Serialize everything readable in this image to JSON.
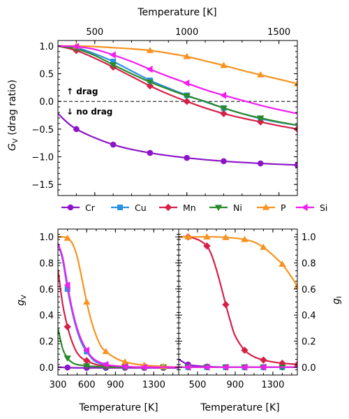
{
  "chart_data": [
    {
      "id": "top",
      "type": "line",
      "xlabel_top": "Temperature [K]",
      "ylabel": "G",
      "ylabel_sub": "V",
      "ylabel_rest": " (drag ratio)",
      "xlim": [
        300,
        1600
      ],
      "ylim": [
        -1.7,
        1.1
      ],
      "xticks": [
        500,
        1000,
        1500
      ],
      "yticks": [
        1.0,
        0.5,
        0.0,
        -0.5,
        -1.0,
        -1.5
      ],
      "ytick_labels": [
        "1.0",
        "0.5",
        "0.0",
        "−0.5",
        "−1.0",
        "−1.5"
      ],
      "zero_line": 0,
      "annotations": {
        "up": "↑ drag",
        "down": "↓ no drag"
      },
      "series": [
        {
          "name": "Cr",
          "color": "#8c14c8",
          "marker": "circle",
          "x": [
            300,
            400,
            600,
            800,
            1000,
            1200,
            1400,
            1600
          ],
          "y": [
            -0.22,
            -0.5,
            -0.78,
            -0.93,
            -1.02,
            -1.08,
            -1.12,
            -1.15
          ],
          "markers_x": [
            400,
            600,
            800,
            1000,
            1200,
            1400,
            1600
          ]
        },
        {
          "name": "Cu",
          "color": "#2b8fe3",
          "marker": "square",
          "x": [
            300,
            400,
            500,
            600,
            700,
            800,
            900,
            1000,
            1100,
            1200,
            1300,
            1400,
            1500,
            1600
          ],
          "y": [
            1.0,
            0.97,
            0.86,
            0.72,
            0.55,
            0.38,
            0.24,
            0.11,
            -0.01,
            -0.12,
            -0.22,
            -0.31,
            -0.38,
            -0.43
          ],
          "markers_x": [
            400,
            600,
            800,
            1000,
            1200,
            1400
          ]
        },
        {
          "name": "Mn",
          "color": "#d62048",
          "marker": "diamond",
          "x": [
            300,
            400,
            500,
            600,
            700,
            800,
            900,
            1000,
            1100,
            1200,
            1300,
            1400,
            1500,
            1600
          ],
          "y": [
            1.0,
            0.92,
            0.78,
            0.62,
            0.45,
            0.28,
            0.13,
            0.0,
            -0.12,
            -0.22,
            -0.3,
            -0.37,
            -0.44,
            -0.5
          ],
          "markers_x": [
            400,
            600,
            800,
            1000,
            1200,
            1400,
            1600
          ]
        },
        {
          "name": "Ni",
          "color": "#2a8a2a",
          "marker": "triangle-down",
          "x": [
            300,
            400,
            500,
            600,
            700,
            800,
            900,
            1000,
            1100,
            1200,
            1300,
            1400,
            1500,
            1600
          ],
          "y": [
            1.0,
            0.95,
            0.83,
            0.66,
            0.5,
            0.35,
            0.22,
            0.1,
            0.0,
            -0.12,
            -0.22,
            -0.3,
            -0.37,
            -0.43
          ],
          "markers_x": [
            400,
            600,
            800,
            1000,
            1200,
            1400
          ]
        },
        {
          "name": "P",
          "color": "#f7931e",
          "marker": "triangle-up",
          "x": [
            300,
            400,
            500,
            600,
            700,
            800,
            900,
            1000,
            1100,
            1200,
            1300,
            1400,
            1500,
            1600
          ],
          "y": [
            1.0,
            1.0,
            0.99,
            0.97,
            0.95,
            0.92,
            0.87,
            0.81,
            0.73,
            0.65,
            0.56,
            0.48,
            0.4,
            0.32
          ],
          "markers_x": [
            400,
            800,
            1000,
            1200,
            1400,
            1600
          ]
        },
        {
          "name": "Si",
          "color": "#f21cf0",
          "marker": "triangle-left",
          "x": [
            300,
            400,
            500,
            600,
            700,
            800,
            900,
            1000,
            1100,
            1200,
            1300,
            1400,
            1500,
            1600
          ],
          "y": [
            1.0,
            0.99,
            0.94,
            0.84,
            0.72,
            0.58,
            0.45,
            0.33,
            0.21,
            0.11,
            0.02,
            -0.07,
            -0.15,
            -0.22
          ],
          "markers_x": [
            400,
            600,
            800,
            1000,
            1200
          ]
        }
      ]
    },
    {
      "id": "bottom-left",
      "type": "line",
      "xlabel": "Temperature [K]",
      "ylabel": "g",
      "ylabel_sub": "V",
      "xlim": [
        300,
        1560
      ],
      "ylim": [
        -0.06,
        1.06
      ],
      "xticks": [
        300,
        600,
        900,
        1300
      ],
      "xtick_labels": [
        "300",
        "600",
        "900",
        "1300"
      ],
      "yticks": [
        0.0,
        0.2,
        0.4,
        0.6,
        0.8,
        1.0
      ],
      "ytick_labels": [
        "0.0",
        "0.2",
        "0.4",
        "0.6",
        "0.8",
        "1.0"
      ],
      "series": [
        {
          "name": "Cr",
          "color": "#8c14c8",
          "marker": "circle",
          "x": [
            300,
            500,
            700,
            900,
            1100,
            1300,
            1560
          ],
          "y": [
            0.0,
            -0.005,
            -0.005,
            -0.005,
            -0.005,
            -0.005,
            -0.005
          ],
          "markers_x": [
            400,
            600,
            800,
            1000,
            1200,
            1400
          ]
        },
        {
          "name": "Cu",
          "color": "#2b8fe3",
          "marker": "square",
          "x": [
            300,
            350,
            400,
            450,
            500,
            550,
            600,
            650,
            700,
            800,
            900,
            1000,
            1200,
            1560
          ],
          "y": [
            0.95,
            0.82,
            0.6,
            0.42,
            0.28,
            0.18,
            0.12,
            0.07,
            0.04,
            0.015,
            0.005,
            0.0,
            0.0,
            0.0
          ],
          "markers_x": [
            400,
            600,
            800,
            1000,
            1200,
            1400
          ]
        },
        {
          "name": "Mn",
          "color": "#d62048",
          "marker": "diamond",
          "x": [
            300,
            350,
            400,
            450,
            500,
            550,
            600,
            700,
            800,
            900,
            1000,
            1200,
            1560
          ],
          "y": [
            0.75,
            0.48,
            0.31,
            0.19,
            0.11,
            0.07,
            0.05,
            0.02,
            0.01,
            0.005,
            0.0,
            0.0,
            0.0
          ],
          "markers_x": [
            400,
            600,
            800,
            1000,
            1200,
            1400
          ]
        },
        {
          "name": "Ni",
          "color": "#2a8a2a",
          "marker": "triangle-down",
          "x": [
            300,
            350,
            400,
            450,
            500,
            600,
            700,
            800,
            1000,
            1200,
            1560
          ],
          "y": [
            0.3,
            0.14,
            0.07,
            0.035,
            0.02,
            0.01,
            0.005,
            0.0,
            0.0,
            0.0,
            0.0
          ],
          "markers_x": [
            400,
            600,
            800,
            1000,
            1200,
            1400
          ]
        },
        {
          "name": "P",
          "color": "#f7931e",
          "marker": "triangle-up",
          "x": [
            300,
            350,
            400,
            450,
            500,
            550,
            600,
            650,
            700,
            750,
            800,
            900,
            1000,
            1100,
            1200,
            1300,
            1400,
            1560
          ],
          "y": [
            1.0,
            1.0,
            0.99,
            0.95,
            0.85,
            0.68,
            0.5,
            0.35,
            0.24,
            0.16,
            0.12,
            0.07,
            0.04,
            0.025,
            0.015,
            0.01,
            0.005,
            0.0
          ],
          "markers_x": [
            400,
            600,
            800,
            1000,
            1200,
            1400
          ]
        },
        {
          "name": "Si",
          "color": "#f21cf0",
          "marker": "triangle-left",
          "x": [
            300,
            350,
            400,
            450,
            500,
            550,
            600,
            650,
            700,
            800,
            900,
            1000,
            1200,
            1560
          ],
          "y": [
            0.95,
            0.84,
            0.63,
            0.44,
            0.3,
            0.2,
            0.13,
            0.08,
            0.05,
            0.02,
            0.01,
            0.005,
            0.0,
            0.0
          ],
          "markers_x": [
            400,
            600,
            800,
            1000,
            1200
          ]
        }
      ]
    },
    {
      "id": "bottom-right",
      "type": "line",
      "xlabel": "Temperature [K]",
      "ylabel": "g",
      "ylabel_sub": "I",
      "xlim": [
        300,
        1560
      ],
      "ylim": [
        -0.06,
        1.06
      ],
      "xticks": [
        500,
        900,
        1300
      ],
      "xtick_labels": [
        "500",
        "900",
        "1300"
      ],
      "yticks": [
        0.0,
        0.2,
        0.4,
        0.6,
        0.8,
        1.0
      ],
      "ytick_labels": [
        "0.0",
        "0.2",
        "0.4",
        "0.6",
        "0.8",
        "1.0"
      ],
      "series": [
        {
          "name": "Cr",
          "color": "#8c14c8",
          "marker": "circle",
          "x": [
            300,
            400,
            500,
            600,
            800,
            1000,
            1560
          ],
          "y": [
            0.06,
            0.02,
            0.01,
            0.005,
            0.0,
            0.0,
            0.0
          ],
          "markers_x": [
            400,
            600,
            800,
            1000,
            1200,
            1400
          ]
        },
        {
          "name": "Cu",
          "color": "#2b8fe3",
          "marker": "square",
          "x": [
            300,
            500,
            800,
            1200,
            1560
          ],
          "y": [
            0.0,
            0.0,
            0.0,
            0.0,
            0.0
          ],
          "markers_x": [
            400,
            600,
            800,
            1000,
            1200,
            1400
          ]
        },
        {
          "name": "Mn",
          "color": "#d62048",
          "marker": "diamond",
          "x": [
            300,
            400,
            500,
            550,
            600,
            650,
            700,
            750,
            800,
            850,
            900,
            1000,
            1100,
            1200,
            1300,
            1400,
            1500,
            1560
          ],
          "y": [
            1.0,
            1.0,
            0.98,
            0.96,
            0.93,
            0.86,
            0.75,
            0.62,
            0.48,
            0.35,
            0.24,
            0.13,
            0.08,
            0.055,
            0.04,
            0.03,
            0.025,
            0.02
          ],
          "markers_x": [
            400,
            600,
            800,
            1000,
            1200,
            1400,
            1560
          ]
        },
        {
          "name": "Ni",
          "color": "#2a8a2a",
          "marker": "triangle-down",
          "x": [
            300,
            500,
            800,
            1200,
            1560
          ],
          "y": [
            0.0,
            0.0,
            0.0,
            0.0,
            0.0
          ],
          "markers_x": [
            400,
            600,
            800,
            1000,
            1200,
            1400
          ]
        },
        {
          "name": "P",
          "color": "#f7931e",
          "marker": "triangle-up",
          "x": [
            300,
            500,
            700,
            900,
            1000,
            1100,
            1200,
            1300,
            1400,
            1500,
            1560
          ],
          "y": [
            1.0,
            1.0,
            1.0,
            0.99,
            0.98,
            0.96,
            0.92,
            0.86,
            0.79,
            0.69,
            0.62
          ],
          "markers_x": [
            400,
            600,
            800,
            1000,
            1200,
            1400,
            1560
          ]
        },
        {
          "name": "Si",
          "color": "#f21cf0",
          "marker": "triangle-left",
          "x": [
            300,
            500,
            800,
            1200,
            1560
          ],
          "y": [
            0.0,
            0.0,
            0.0,
            0.0,
            0.0
          ],
          "markers_x": [
            400,
            600,
            800,
            1000,
            1200
          ]
        }
      ]
    }
  ],
  "legend": {
    "placement": "between-panels",
    "entries": [
      {
        "name": "Cr",
        "color": "#8c14c8",
        "marker": "circle"
      },
      {
        "name": "Cu",
        "color": "#2b8fe3",
        "marker": "square"
      },
      {
        "name": "Mn",
        "color": "#d62048",
        "marker": "diamond"
      },
      {
        "name": "Ni",
        "color": "#2a8a2a",
        "marker": "triangle-down"
      },
      {
        "name": "P",
        "color": "#f7931e",
        "marker": "triangle-up"
      },
      {
        "name": "Si",
        "color": "#f21cf0",
        "marker": "triangle-left"
      }
    ]
  }
}
